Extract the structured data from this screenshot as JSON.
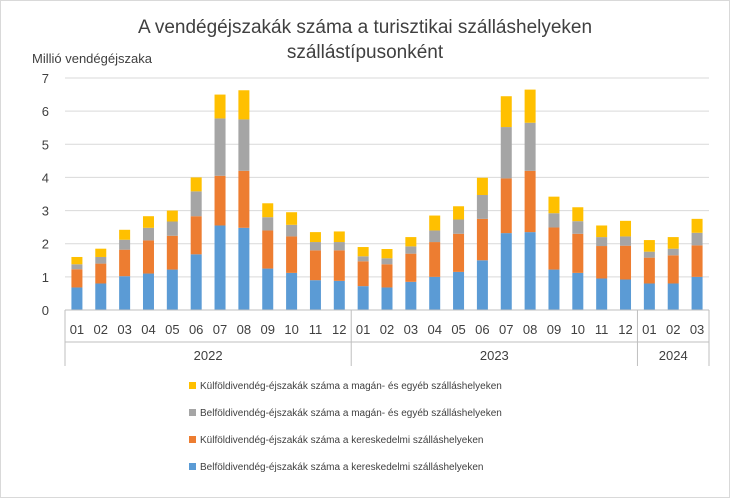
{
  "chart_data": {
    "type": "bar",
    "stacked": true,
    "title": "A vendégéjszakák száma a turisztikai szálláshelyeken szállástípusonként",
    "title_lines": [
      "A vendégéjszakák száma a turisztikai szálláshelyeken",
      "szállástípusonként"
    ],
    "ylabel": "Millió vendégéjszaka",
    "xlabel": "",
    "ylim": [
      0,
      7
    ],
    "yticks": [
      0,
      1,
      2,
      3,
      4,
      5,
      6,
      7
    ],
    "grid": true,
    "legend_position": "bottom",
    "categories": [
      "01",
      "02",
      "03",
      "04",
      "05",
      "06",
      "07",
      "08",
      "09",
      "10",
      "11",
      "12",
      "01",
      "02",
      "03",
      "04",
      "05",
      "06",
      "07",
      "08",
      "09",
      "10",
      "11",
      "12",
      "01",
      "02",
      "03"
    ],
    "year_groups": [
      {
        "label": "2022",
        "count": 12
      },
      {
        "label": "2023",
        "count": 12
      },
      {
        "label": "2024",
        "count": 3
      }
    ],
    "series": [
      {
        "name": "Belföldivendég-éjszakák száma a kereskedelmi szálláshelyeken",
        "color": "#5b9bd5",
        "values": [
          0.68,
          0.8,
          1.02,
          1.1,
          1.22,
          1.68,
          2.55,
          2.48,
          1.25,
          1.12,
          0.9,
          0.88,
          0.72,
          0.68,
          0.85,
          1.0,
          1.15,
          1.5,
          2.32,
          2.35,
          1.22,
          1.12,
          0.95,
          0.92,
          0.8,
          0.8,
          1.0
        ]
      },
      {
        "name": "Külföldivendég-éjszakák száma a kereskedelmi szálláshelyeken",
        "color": "#ed7d31",
        "values": [
          0.55,
          0.6,
          0.8,
          1.0,
          1.02,
          1.15,
          1.5,
          1.72,
          1.15,
          1.1,
          0.9,
          0.92,
          0.75,
          0.7,
          0.85,
          1.05,
          1.15,
          1.25,
          1.65,
          1.85,
          1.27,
          1.18,
          0.98,
          1.02,
          0.78,
          0.85,
          0.95
        ]
      },
      {
        "name": "Belföldivendég-éjszakák száma a magán- és egyéb szálláshelyeken",
        "color": "#a5a5a5",
        "values": [
          0.15,
          0.2,
          0.3,
          0.38,
          0.43,
          0.75,
          1.73,
          1.55,
          0.4,
          0.35,
          0.25,
          0.25,
          0.15,
          0.18,
          0.22,
          0.35,
          0.43,
          0.72,
          1.55,
          1.45,
          0.43,
          0.38,
          0.27,
          0.28,
          0.18,
          0.2,
          0.38
        ]
      },
      {
        "name": "Külföldivendég-éjszakák száma a magán- és egyéb szálláshelyeken",
        "color": "#ffc000",
        "values": [
          0.22,
          0.25,
          0.3,
          0.35,
          0.33,
          0.42,
          0.72,
          0.88,
          0.42,
          0.38,
          0.3,
          0.32,
          0.28,
          0.28,
          0.28,
          0.45,
          0.4,
          0.52,
          0.93,
          1.0,
          0.5,
          0.42,
          0.35,
          0.47,
          0.35,
          0.35,
          0.42
        ]
      }
    ]
  }
}
